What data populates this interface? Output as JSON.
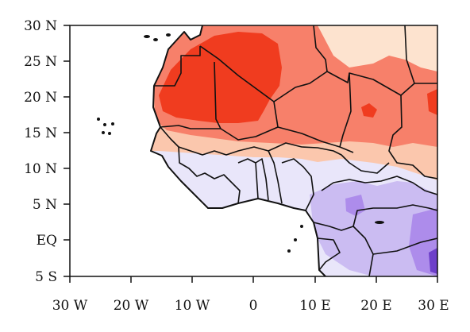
{
  "map": {
    "lat_ticks": [
      "30 N",
      "25 N",
      "20 N",
      "15 N",
      "10 N",
      "5 N",
      "EQ",
      "5 S"
    ],
    "lon_ticks": [
      "30 W",
      "20 W",
      "10 W",
      "0",
      "10 E",
      "20 E",
      "30 E"
    ],
    "extent": {
      "lon": [
        -30,
        30
      ],
      "lat": [
        -5,
        30
      ]
    },
    "colors": {
      "deep_red": "#f03c1f",
      "red": "#f7806a",
      "light_red": "#fbc7ad",
      "pale_peach": "#fde3cf",
      "pale_lavender": "#e9e6fa",
      "lavender": "#cbbcf2",
      "purple": "#ad8ceb",
      "deep_purple": "#6d3fc9",
      "ocean": "#ffffff",
      "border": "#111111"
    }
  }
}
